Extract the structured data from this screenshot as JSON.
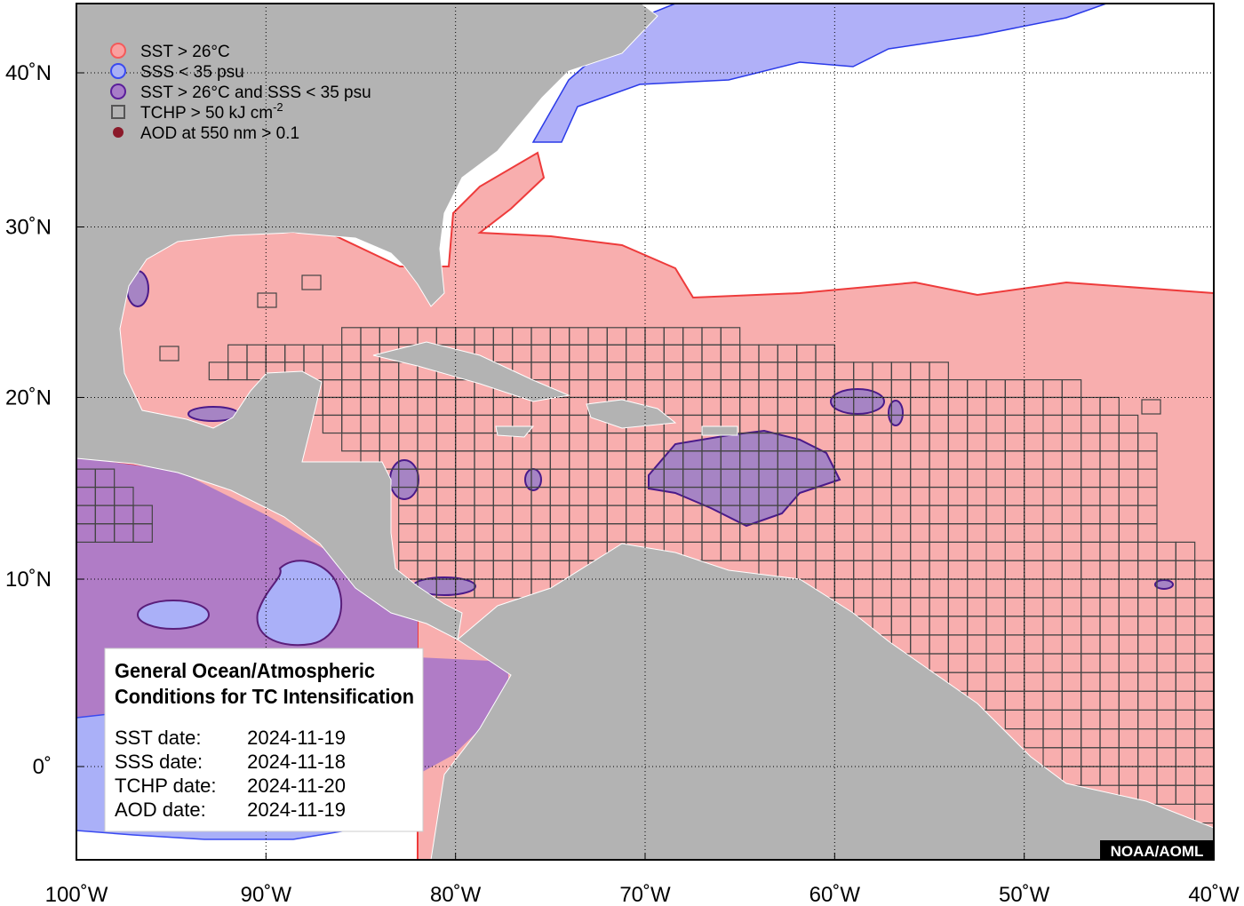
{
  "legend": [
    {
      "label": "SST > 26°C",
      "shape": "circle",
      "fill": "#f9a0a0",
      "stroke": "#f45a5a"
    },
    {
      "label": "SSS < 35 psu",
      "shape": "circle",
      "fill": "#aab0f4",
      "stroke": "#3a4af0"
    },
    {
      "label": "SST > 26°C and SSS < 35 psu",
      "shape": "circle",
      "fill": "#a77cc8",
      "stroke": "#5a1e9a"
    },
    {
      "label": "TCHP > 50 kJ cm",
      "superscript": "-2",
      "shape": "square",
      "fill": "none",
      "stroke": "#555555"
    },
    {
      "label": "AOD at 550 nm > 0.1",
      "shape": "dot",
      "fill": "#8b1a2a",
      "stroke": "#8b1a2a"
    }
  ],
  "map": {
    "lon_ticks": [
      {
        "value": -100,
        "label": "100˚W"
      },
      {
        "value": -90,
        "label": "90˚W"
      },
      {
        "value": -80,
        "label": "80˚W"
      },
      {
        "value": -70,
        "label": "70˚W"
      },
      {
        "value": -60,
        "label": "60˚W"
      },
      {
        "value": -50,
        "label": "50˚W"
      },
      {
        "value": -40,
        "label": "40˚W"
      }
    ],
    "lat_ticks": [
      {
        "value": 40,
        "label": "40˚N"
      },
      {
        "value": 30,
        "label": "30˚N"
      },
      {
        "value": 20,
        "label": "20˚N"
      },
      {
        "value": 10,
        "label": "10˚N"
      },
      {
        "value": 0,
        "label": "0˚"
      }
    ]
  },
  "info_box": {
    "title_lines": [
      "General Ocean/Atmospheric",
      "Conditions for TC Intensification"
    ],
    "dates": [
      {
        "label": "SST date:",
        "value": "2024-11-19"
      },
      {
        "label": "SSS date:",
        "value": "2024-11-18"
      },
      {
        "label": "TCHP date:",
        "value": "2024-11-20"
      },
      {
        "label": "AOD date:",
        "value": "2024-11-19"
      }
    ]
  },
  "credit": "NOAA/AOML"
}
